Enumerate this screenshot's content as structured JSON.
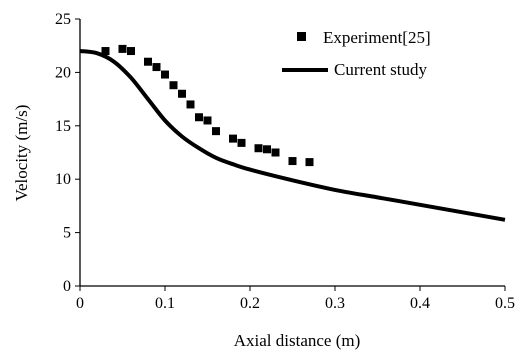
{
  "chart_data": {
    "type": "scatter",
    "xlabel": "Axial distance (m)",
    "ylabel": "Velocity (m/s)",
    "xlim": [
      0,
      0.5
    ],
    "ylim": [
      0,
      25
    ],
    "x_ticks": [
      "0",
      "0.1",
      "0.2",
      "0.3",
      "0.4",
      "0.5"
    ],
    "y_ticks": [
      "0",
      "5",
      "10",
      "15",
      "20",
      "25"
    ],
    "grid": false,
    "legend_position": "top-right",
    "series": [
      {
        "name": "Experiment[25]",
        "kind": "markers",
        "marker": "square",
        "color": "#000000",
        "x": [
          0.03,
          0.05,
          0.06,
          0.08,
          0.09,
          0.1,
          0.11,
          0.12,
          0.13,
          0.14,
          0.15,
          0.16,
          0.18,
          0.19,
          0.21,
          0.22,
          0.23,
          0.25,
          0.27
        ],
        "y": [
          22.0,
          22.2,
          22.0,
          21.0,
          20.5,
          19.8,
          18.8,
          18.0,
          17.0,
          15.8,
          15.5,
          14.5,
          13.8,
          13.4,
          12.9,
          12.8,
          12.5,
          11.7,
          11.6
        ]
      },
      {
        "name": "Current study",
        "kind": "line",
        "color": "#000000",
        "x": [
          0,
          0.02,
          0.04,
          0.06,
          0.08,
          0.1,
          0.12,
          0.14,
          0.16,
          0.18,
          0.2,
          0.25,
          0.3,
          0.35,
          0.4,
          0.45,
          0.5
        ],
        "y": [
          22.0,
          21.8,
          21.0,
          19.5,
          17.5,
          15.5,
          14.0,
          12.9,
          12.0,
          11.4,
          10.9,
          9.9,
          9.0,
          8.3,
          7.6,
          6.9,
          6.2
        ]
      }
    ]
  }
}
